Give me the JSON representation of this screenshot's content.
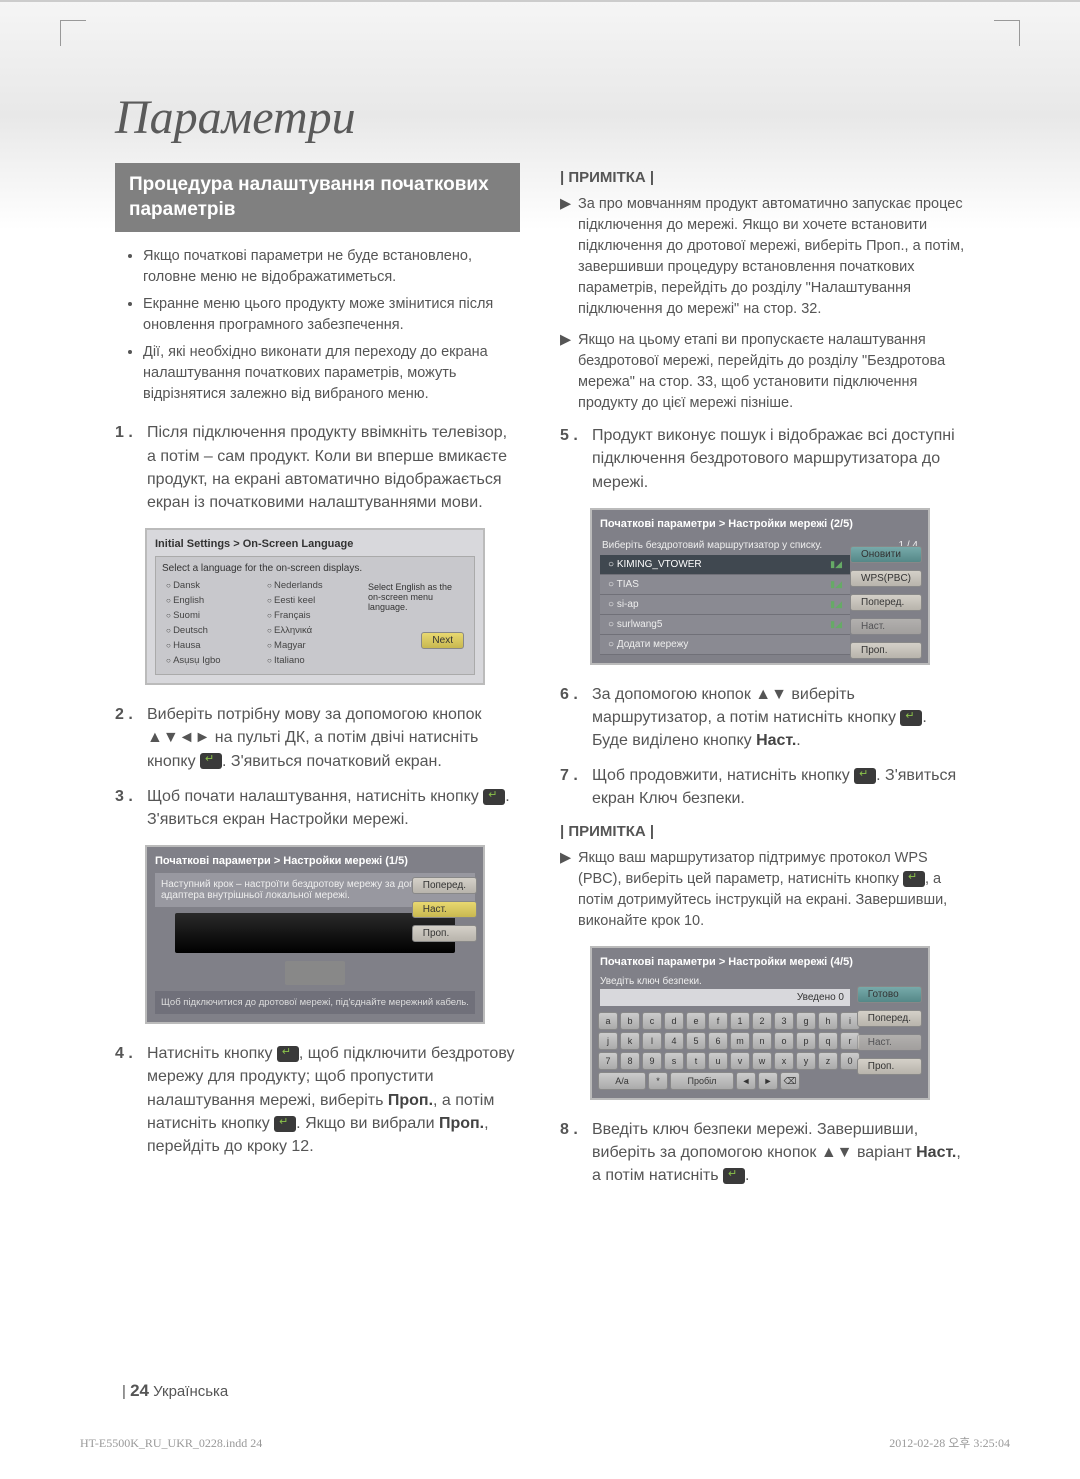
{
  "title": "Параметри",
  "section_header": "Процедура налаштування початкових параметрів",
  "bullets": [
    "Якщо початкові параметри не буде встановлено, головне меню не відображатиметься.",
    "Екранне меню цього продукту може змінитися після оновлення програмного забезпечення.",
    "Дії, які необхідно виконати для переходу до екрана налаштування початкових параметрів, можуть відрізнятися залежно від вибраного меню."
  ],
  "steps_left": {
    "1": "Після підключення продукту ввімкніть телевізор, а потім – сам продукт. Коли ви вперше вмикаєте продукт, на екрані автоматично відображається екран із початковими налаштуваннями мови.",
    "2": "Виберіть потрібну мову за допомогою кнопок ▲▼◄► на пульті ДК, а потім двічі натисніть кнопку ",
    "2b": ". З'явиться початковий екран.",
    "3": "Щоб почати налаштування, натисніть кнопку ",
    "3b": ". З'явиться екран Настройки мережі.",
    "4": "Натисніть кнопку ",
    "4b": ", щоб підключити бездротову мережу для продукту; щоб пропустити налаштування мережі, виберіть ",
    "4c": "Проп.",
    "4d": ", а потім натисніть кнопку ",
    "4e": ". Якщо ви вибрали ",
    "4f": "Проп.",
    "4g": ", перейдіть до кроку 12."
  },
  "note_label": "| ПРИМІТКА |",
  "notes_right_top": [
    "За про мовчанням продукт автоматично запускає процес підключення до мережі. Якщо ви хочете встановити підключення до дротової мережі, виберіть Проп., а потім, завершивши процедуру встановлення початкових параметрів, перейдіть до розділу \"Налаштування підключення до мережі\" на стор. 32.",
    "Якщо на цьому етапі ви пропускаєте налаштування бездротової мережі, перейдіть до розділу \"Бездротова мережа\" на стор. 33, щоб установити підключення продукту до цієї мережі пізніше."
  ],
  "steps_right": {
    "5": "Продукт виконує пошук і відображає всі доступні підключення бездротового маршрутизатора до мережі.",
    "6": "За допомогою кнопок ▲▼ виберіть маршрутизатор, а потім натисніть кнопку ",
    "6b": ". Буде виділено кнопку ",
    "6c": "Наст.",
    "6d": ".",
    "7": "Щоб продовжити, натисніть кнопку ",
    "7b": ". З'явиться екран Ключ безпеки.",
    "8": "Введіть ключ безпеки мережі. Завершивши, виберіть за допомогою кнопок ▲▼ варіант ",
    "8b": "Наст.",
    "8c": ", а потім натисніть "
  },
  "note_wps": "Якщо ваш маршрутизатор підтримує протокол WPS (PBC), виберіть цей параметр, натисніть кнопку ",
  "note_wps_b": ", а потім дотримуйтесь інструкцій на екрані. Завершивши, виконайте крок 10.",
  "screenshot1": {
    "title": "Initial Settings > On-Screen Language",
    "subtitle": "Select a language for the on-screen displays.",
    "langs_col1": [
      "Dansk",
      "English",
      "Suomi",
      "Deutsch",
      "Hausa",
      "Asụsụ Igbo"
    ],
    "langs_col2": [
      "Nederlands",
      "Eesti keel",
      "Français",
      "Ελληνικά",
      "Magyar",
      "Italiano"
    ],
    "hint": "Select English as the on-screen menu language.",
    "next": "Next"
  },
  "screenshot2": {
    "title": "Початкові параметри > Настройки мережі (1/5)",
    "line1": "Наступний крок – настроїти бездротову мережу за допомогою адаптера внутрішньої локальної мережі.",
    "line2": "Щоб підключитися до дротової мережі, під'єднайте мережний кабель.",
    "btn_prev": "Поперед.",
    "btn_next": "Наст.",
    "btn_skip": "Проп."
  },
  "screenshot3": {
    "title": "Початкові параметри > Настройки мережі (2/5)",
    "subtitle": "Виберіть бездротовий маршрутизатор у списку.",
    "counter": "1 / 4",
    "networks": [
      "KIMING_VTOWER",
      "TIAS",
      "si-ap",
      "surlwang5",
      "Додати мережу"
    ],
    "btn_refresh": "Оновити",
    "btn_wps": "WPS(PBC)",
    "btn_prev": "Поперед.",
    "btn_next": "Наст.",
    "btn_skip": "Проп."
  },
  "screenshot4": {
    "title": "Початкові параметри > Настройки мережі (4/5)",
    "subtitle": "Уведіть ключ безпеки.",
    "counter": "Уведено 0",
    "btn_done": "Готово",
    "btn_prev": "Поперед.",
    "btn_next": "Наст.",
    "btn_skip": "Проп.",
    "keys_r1": [
      "a",
      "b",
      "c",
      "d",
      "e",
      "f",
      "1",
      "2",
      "3"
    ],
    "keys_r2": [
      "g",
      "h",
      "i",
      "j",
      "k",
      "l",
      "4",
      "5",
      "6"
    ],
    "keys_r3": [
      "m",
      "n",
      "o",
      "p",
      "q",
      "r",
      "7",
      "8",
      "9"
    ],
    "keys_r4": [
      "s",
      "t",
      "u",
      "v",
      "w",
      "x",
      "y",
      "z",
      "0"
    ],
    "keys_r5": [
      "A/a",
      "*",
      "Пробіл",
      "◄",
      "►",
      "⌫"
    ]
  },
  "footer_page": "24",
  "footer_lang": "Українська",
  "print_file": "HT-E5500K_RU_UKR_0228.indd   24",
  "print_date": "2012-02-28   오후 3:25:04"
}
